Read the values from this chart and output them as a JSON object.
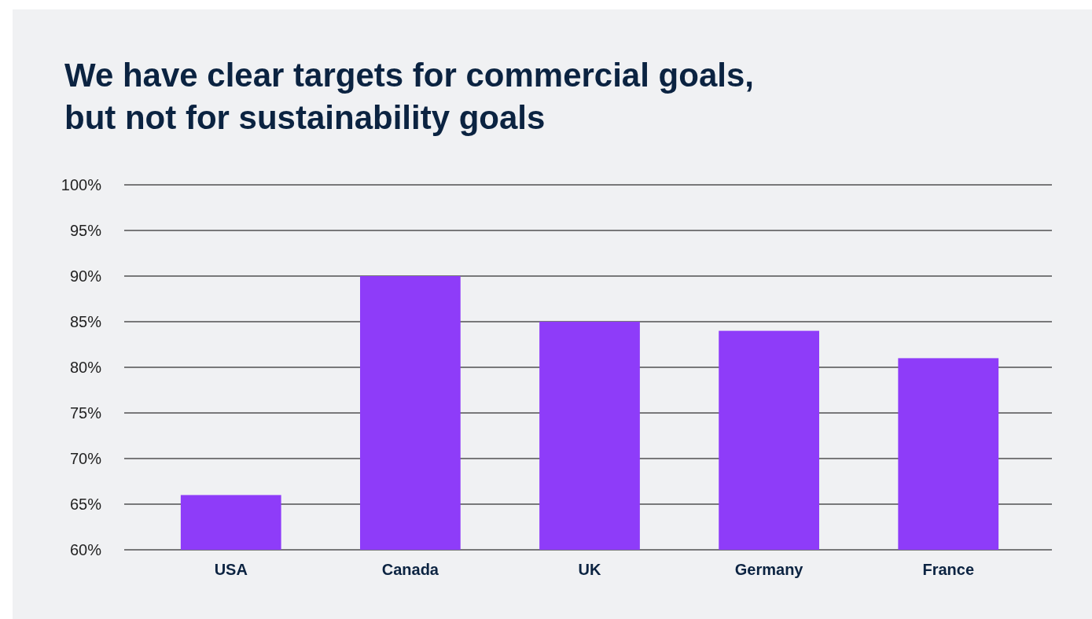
{
  "chart_data": {
    "type": "bar",
    "title": "We have clear targets for commercial goals,\nbut not for sustainability goals",
    "categories": [
      "USA",
      "Canada",
      "UK",
      "Germany",
      "France"
    ],
    "values": [
      66,
      90,
      85,
      84,
      81
    ],
    "color": "#8e3cf9",
    "ylim": [
      60,
      100
    ],
    "yticks": [
      {
        "value": 60,
        "label": "60%"
      },
      {
        "value": 65,
        "label": "65%"
      },
      {
        "value": 70,
        "label": "70%"
      },
      {
        "value": 75,
        "label": "75%"
      },
      {
        "value": 80,
        "label": "80%"
      },
      {
        "value": 85,
        "label": "85%"
      },
      {
        "value": 90,
        "label": "90%"
      },
      {
        "value": 95,
        "label": "95%"
      },
      {
        "value": 100,
        "label": "100%"
      }
    ],
    "grid": "y"
  }
}
